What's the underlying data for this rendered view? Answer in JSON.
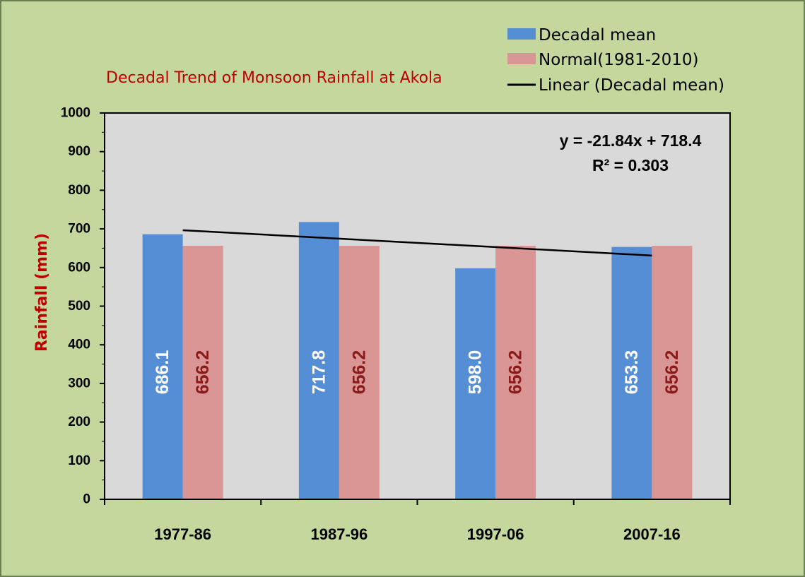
{
  "colors": {
    "background": "#c4d89e",
    "plot_area": "#d9d9d9",
    "decadal_mean": "#558ed5",
    "normal": "#d99694",
    "trendline": "#000000",
    "title": "#c00000",
    "ylabel": "#c00000",
    "label_on_blue": "#ffffff",
    "label_on_pink": "#8b1a1a"
  },
  "chart_data": {
    "type": "bar",
    "title": "Decadal Trend of Monsoon Rainfall at Akola",
    "xlabel": "",
    "ylabel": "Rainfall (mm)",
    "ylim": [
      0,
      1000
    ],
    "yticks": [
      "0",
      "100",
      "200",
      "300",
      "400",
      "500",
      "600",
      "700",
      "800",
      "900",
      "1000"
    ],
    "categories": [
      "1977-86",
      "1987-96",
      "1997-06",
      "2007-16"
    ],
    "series": [
      {
        "name": "Decadal mean",
        "values": [
          686.1,
          717.8,
          598.0,
          653.3
        ],
        "labels": [
          "686.1",
          "717.8",
          "598.0",
          "653.3"
        ]
      },
      {
        "name": "Normal(1981-2010)",
        "values": [
          656.2,
          656.2,
          656.2,
          656.2
        ],
        "labels": [
          "656.2",
          "656.2",
          "656.2",
          "656.2"
        ]
      }
    ],
    "trendline": {
      "name": "Linear (Decadal mean)",
      "slope": -21.84,
      "intercept": 718.4,
      "equation": "y = -21.84x + 718.4",
      "r2": "R² = 0.303"
    },
    "legend_position": "top-right",
    "grid": false
  }
}
